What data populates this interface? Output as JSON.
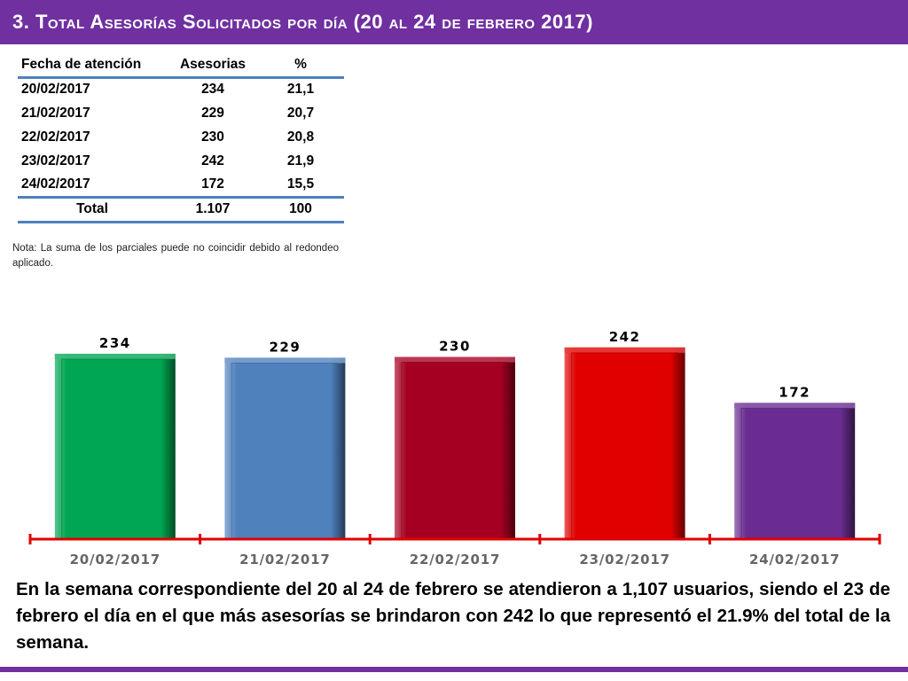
{
  "header": {
    "title": "3. Total Asesorías Solicitados por día (20 al 24 de febrero 2017)"
  },
  "table": {
    "headers": [
      "Fecha de atención",
      "Asesorias",
      "%"
    ],
    "rows": [
      [
        "20/02/2017",
        "234",
        "21,1"
      ],
      [
        "21/02/2017",
        "229",
        "20,7"
      ],
      [
        "22/02/2017",
        "230",
        "20,8"
      ],
      [
        "23/02/2017",
        "242",
        "21,9"
      ],
      [
        "24/02/2017",
        "172",
        "15,5"
      ]
    ],
    "total": [
      "Total",
      "1.107",
      "100"
    ]
  },
  "note": "Nota: La suma de los parciales puede no coincidir debido al redondeo aplicado.",
  "chart_data": {
    "type": "bar",
    "categories": [
      "20/02/2017",
      "21/02/2017",
      "22/02/2017",
      "23/02/2017",
      "24/02/2017"
    ],
    "values": [
      234,
      229,
      230,
      242,
      172
    ],
    "data_labels": [
      "234",
      "229",
      "230",
      "242",
      "172"
    ],
    "colors": [
      "#00a651",
      "#4f81bd",
      "#a50021",
      "#e00000",
      "#6a2c91"
    ],
    "axis_color": "#e00000",
    "grid": false,
    "legend": "none"
  },
  "summary": "En la semana correspondiente del 20 al 24 de febrero se atendieron a 1,107 usuarios, siendo el 23 de febrero el día en el que más asesorías se brindaron con 242 lo que representó el 21.9% del total de la semana.",
  "theme": {
    "primary": "#7030a0",
    "table_rule": "#4f81bd"
  }
}
